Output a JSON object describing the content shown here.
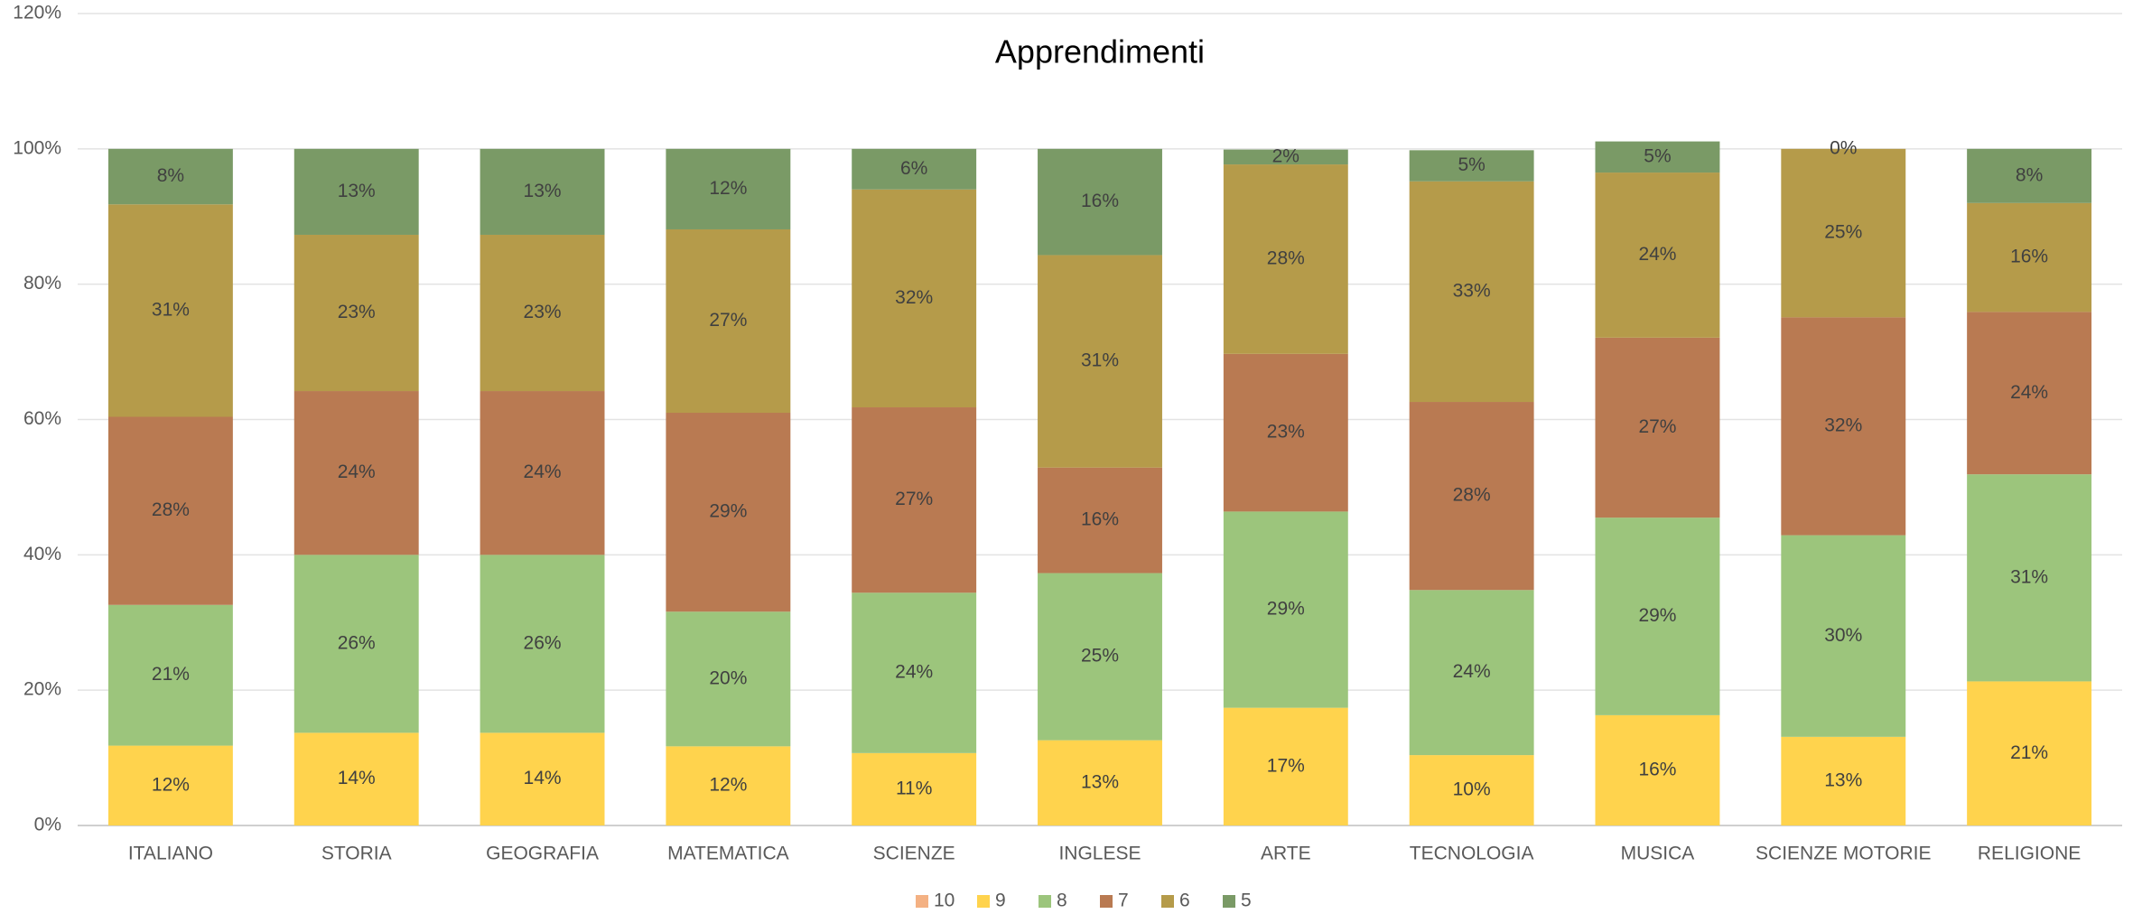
{
  "chart_data": {
    "type": "stacked_bar",
    "title": "Apprendimenti",
    "categories": [
      "ITALIANO",
      "STORIA",
      "GEOGRAFIA",
      "MATEMATICA",
      "SCIENZE",
      "INGLESE",
      "ARTE",
      "TECNOLOGIA",
      "MUSICA",
      "SCIENZE MOTORIE",
      "RELIGIONE"
    ],
    "series": [
      {
        "name": "10",
        "color": "#f4b183",
        "values": [
          0,
          0,
          0,
          0,
          0,
          0,
          0,
          0,
          0,
          0,
          0
        ]
      },
      {
        "name": "9",
        "color": "#ffd34d",
        "values": [
          11.8,
          13.7,
          13.7,
          11.7,
          10.7,
          12.6,
          17.4,
          10.4,
          16.3,
          13.1,
          21.3
        ],
        "value_labels": [
          "12%",
          "14%",
          "14%",
          "12%",
          "11%",
          "13%",
          "17%",
          "10%",
          "16%",
          "13%",
          "21%"
        ]
      },
      {
        "name": "8",
        "color": "#9cc57c",
        "values": [
          20.8,
          26.3,
          26.3,
          19.9,
          23.7,
          24.7,
          29.0,
          24.4,
          29.2,
          29.8,
          30.6
        ],
        "value_labels": [
          "21%",
          "26%",
          "26%",
          "20%",
          "24%",
          "25%",
          "29%",
          "24%",
          "29%",
          "30%",
          "31%"
        ]
      },
      {
        "name": "7",
        "color": "#b97a52",
        "values": [
          27.8,
          24.2,
          24.2,
          29.4,
          27.4,
          15.6,
          23.3,
          27.8,
          26.6,
          32.2,
          24.0
        ],
        "value_labels": [
          "28%",
          "24%",
          "24%",
          "29%",
          "27%",
          "16%",
          "23%",
          "28%",
          "27%",
          "32%",
          "24%"
        ]
      },
      {
        "name": "6",
        "color": "#b59b4a",
        "values": [
          31.4,
          23.1,
          23.1,
          27.1,
          32.2,
          31.4,
          28.0,
          32.6,
          24.4,
          24.9,
          16.1
        ],
        "value_labels": [
          "31%",
          "23%",
          "23%",
          "27%",
          "32%",
          "31%",
          "28%",
          "33%",
          "24%",
          "25%",
          "16%"
        ]
      },
      {
        "name": "5",
        "color": "#7a9a66",
        "values": [
          8.2,
          12.7,
          12.7,
          11.9,
          6.0,
          15.7,
          2.2,
          4.6,
          4.6,
          0,
          8.0
        ],
        "value_labels": [
          "8%",
          "13%",
          "13%",
          "12%",
          "6%",
          "16%",
          "2%",
          "5%",
          "5%",
          "0%",
          "8%"
        ]
      }
    ],
    "ylim": [
      0,
      120
    ],
    "yticks": [
      {
        "value": 0,
        "label": "0%"
      },
      {
        "value": 20,
        "label": "20%"
      },
      {
        "value": 40,
        "label": "40%"
      },
      {
        "value": 60,
        "label": "60%"
      },
      {
        "value": 80,
        "label": "80%"
      },
      {
        "value": 100,
        "label": "100%"
      },
      {
        "value": 120,
        "label": "120%"
      }
    ],
    "grid": true,
    "legend": "bottom"
  }
}
